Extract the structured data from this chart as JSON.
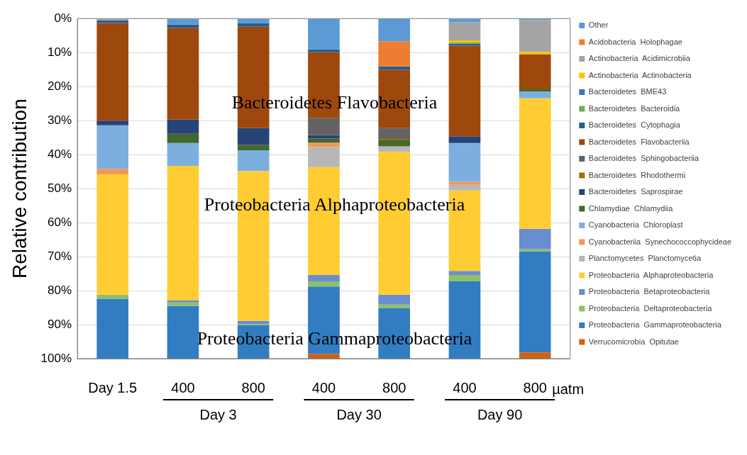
{
  "chart_data": {
    "type": "bar",
    "stacked": true,
    "ylabel": "Relative contribution",
    "categories": [
      "Day 1.5",
      "400",
      "800",
      "400",
      "800",
      "400",
      "800"
    ],
    "ylim": [
      100,
      0
    ],
    "yticks": [
      {
        "value": 0,
        "label": "0%"
      },
      {
        "value": 10,
        "label": "10%"
      },
      {
        "value": 20,
        "label": "20%"
      },
      {
        "value": 30,
        "label": "30%"
      },
      {
        "value": 40,
        "label": "40%"
      },
      {
        "value": 50,
        "label": "50%"
      },
      {
        "value": 60,
        "label": "60%"
      },
      {
        "value": 70,
        "label": "70%"
      },
      {
        "value": 80,
        "label": "80%"
      },
      {
        "value": 90,
        "label": "90%"
      },
      {
        "value": 100,
        "label": "100%"
      }
    ],
    "grid": "y",
    "legend": "right",
    "annotations": [
      "Bacteroidetes Flavobacteria",
      "Proteobacteria Alphaproteobacteria",
      "Proteobacteria Gammaproteobacteria",
      "µatm",
      "Day 3",
      "Day 30",
      "Day 90"
    ],
    "series": [
      {
        "name": "Other",
        "color": "#5b9bd5",
        "values": [
          0,
          1.8,
          1.3,
          9.0,
          6.7,
          1.1,
          0.5
        ]
      },
      {
        "name": "Acidobacteria  Holophagae",
        "color": "#ed7d31",
        "values": [
          0,
          0,
          0,
          0,
          7.4,
          0,
          0
        ]
      },
      {
        "name": "Actinobacteria  Acidimicrobiia",
        "color": "#a5a5a5",
        "values": [
          0.5,
          0,
          0,
          0,
          0,
          5.3,
          9.3
        ]
      },
      {
        "name": "Actinobacteria  Actinobacteria",
        "color": "#ffc000",
        "values": [
          0,
          0,
          0,
          0,
          0,
          0.6,
          0.7
        ]
      },
      {
        "name": "Bacteroidetes  BME43",
        "color": "#4472c4",
        "values": [
          0,
          0,
          0,
          0,
          0,
          0,
          0
        ]
      },
      {
        "name": "Bacteroidetes  Bacteroidia",
        "color": "#70ad47",
        "values": [
          0,
          0,
          0,
          0,
          0,
          0.4,
          0
        ]
      },
      {
        "name": "Bacteroidetes  Cytophagia",
        "color": "#255e91",
        "values": [
          0.8,
          0.9,
          1.0,
          0.9,
          0.9,
          0.6,
          0
        ]
      },
      {
        "name": "Bacteroidetes  Flavobacteriia",
        "color": "#9e480e",
        "values": [
          28.7,
          27.0,
          29.9,
          19.4,
          17.2,
          26.6,
          10.3
        ]
      },
      {
        "name": "Bacteroidetes  Sphingobacteriia",
        "color": "#636363",
        "values": [
          0,
          0,
          0,
          5.0,
          3.2,
          0,
          0
        ]
      },
      {
        "name": "Bacteroidetes  Rhodothermi",
        "color": "#997300",
        "values": [
          0,
          0,
          0,
          0,
          0.4,
          0,
          0
        ]
      },
      {
        "name": "Bacteroidetes  Saprospirae",
        "color": "#264478",
        "values": [
          1.4,
          4.2,
          4.9,
          1.0,
          0,
          2.0,
          0
        ]
      },
      {
        "name": "Chlamydiae  Chlamydiia",
        "color": "#43682b",
        "values": [
          0,
          2.7,
          1.6,
          1.2,
          1.8,
          0,
          0.6
        ]
      },
      {
        "name": "Cyanobacteria  Chloroplast",
        "color": "#7cafdd",
        "values": [
          12.8,
          6.7,
          6.1,
          0,
          0,
          11.4,
          2.0
        ]
      },
      {
        "name": "Cyanobacteriia  Synechococcophycideae",
        "color": "#f1975a",
        "values": [
          1.6,
          0,
          0,
          1.3,
          0,
          0.9,
          0
        ]
      },
      {
        "name": "Planctomycetes  Planctomycetia",
        "color": "#b7b7b7",
        "values": [
          0,
          0,
          0,
          5.9,
          1.6,
          1.6,
          0
        ]
      },
      {
        "name": "Proteobacteria  Alphaproteobacteria",
        "color": "#ffcd33",
        "values": [
          35.4,
          39.6,
          44.1,
          31.7,
          42.0,
          23.7,
          38.4
        ]
      },
      {
        "name": "Proteobacteria  Betaproteobacteria",
        "color": "#698ed0",
        "values": [
          0,
          0.6,
          1.0,
          1.9,
          2.9,
          1.2,
          6.0
        ]
      },
      {
        "name": "Proteobacteria  Deltaproteobacteria",
        "color": "#8cc168",
        "values": [
          1.2,
          1.0,
          0.3,
          1.5,
          1.1,
          1.9,
          0.7
        ]
      },
      {
        "name": "Proteobacteria  Gammaproteobacteria",
        "color": "#327dc2",
        "values": [
          17.6,
          15.5,
          9.8,
          19.8,
          14.8,
          22.7,
          29.7
        ]
      },
      {
        "name": "Verrucomicrobia  Opitutae",
        "color": "#d26012",
        "values": [
          0,
          0,
          0,
          1.4,
          0,
          0,
          1.8
        ]
      }
    ]
  }
}
